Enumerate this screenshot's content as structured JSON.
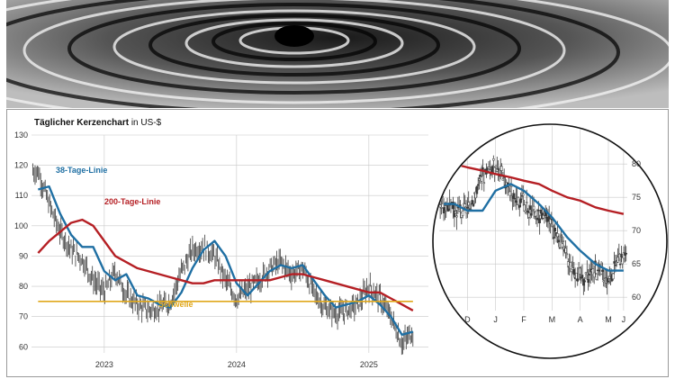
{
  "header": {
    "title_bold": "Täglicher Kerzenchart",
    "title_rest": " in US-$"
  },
  "colors": {
    "ma38": "#1f6fa3",
    "ma200": "#b51f24",
    "threshold": "#e0a81c",
    "candles": "#3a3a3a",
    "grid": "#c8c8c8"
  },
  "chart_data": [
    {
      "type": "line",
      "title": "Täglicher Kerzenchart in US-$",
      "xlabel": "",
      "ylabel": "",
      "x_ticks": [
        "2023",
        "2024",
        "2025"
      ],
      "y_ticks": [
        60,
        70,
        80,
        90,
        100,
        110,
        120,
        130
      ],
      "ylim": [
        58,
        130
      ],
      "grid": true,
      "series": [
        {
          "name": "38-Tage-Linie",
          "x": [
            "2022-07",
            "2022-08",
            "2022-09",
            "2022-10",
            "2022-11",
            "2022-12",
            "2023-01",
            "2023-02",
            "2023-03",
            "2023-04",
            "2023-05",
            "2023-06",
            "2023-07",
            "2023-08",
            "2023-09",
            "2023-10",
            "2023-11",
            "2023-12",
            "2024-01",
            "2024-02",
            "2024-03",
            "2024-04",
            "2024-05",
            "2024-06",
            "2024-07",
            "2024-08",
            "2024-09",
            "2024-10",
            "2024-11",
            "2024-12",
            "2025-01",
            "2025-02",
            "2025-03",
            "2025-04",
            "2025-05"
          ],
          "values": [
            112,
            113,
            104,
            97,
            93,
            93,
            85,
            82,
            84,
            77,
            76,
            74,
            73,
            78,
            86,
            92,
            95,
            90,
            81,
            77,
            81,
            85,
            87,
            86,
            87,
            82,
            77,
            73,
            74,
            75,
            77,
            74,
            70,
            64,
            65
          ]
        },
        {
          "name": "200-Tage-Linie",
          "x": [
            "2022-07",
            "2022-08",
            "2022-09",
            "2022-10",
            "2022-11",
            "2022-12",
            "2023-01",
            "2023-02",
            "2023-03",
            "2023-04",
            "2023-05",
            "2023-06",
            "2023-07",
            "2023-08",
            "2023-09",
            "2023-10",
            "2023-11",
            "2023-12",
            "2024-01",
            "2024-02",
            "2024-03",
            "2024-04",
            "2024-05",
            "2024-06",
            "2024-07",
            "2024-08",
            "2024-09",
            "2024-10",
            "2024-11",
            "2024-12",
            "2025-01",
            "2025-02",
            "2025-03",
            "2025-04",
            "2025-05"
          ],
          "values": [
            91,
            95,
            98,
            101,
            102,
            100,
            95,
            90,
            88,
            86,
            85,
            84,
            83,
            82,
            81,
            81,
            82,
            82,
            82,
            82,
            82,
            82,
            83,
            84,
            84,
            83,
            82,
            81,
            80,
            79,
            78,
            78,
            76,
            74,
            72
          ]
        },
        {
          "name": "Schwelle",
          "x": [
            "2022-07",
            "2025-05"
          ],
          "values": [
            75,
            75
          ]
        }
      ],
      "candles": {
        "x": [
          "2022-07",
          "2022-08",
          "2022-09",
          "2022-10",
          "2022-11",
          "2022-12",
          "2023-01",
          "2023-02",
          "2023-03",
          "2023-04",
          "2023-05",
          "2023-06",
          "2023-07",
          "2023-08",
          "2023-09",
          "2023-10",
          "2023-11",
          "2023-12",
          "2024-01",
          "2024-02",
          "2024-03",
          "2024-04",
          "2024-05",
          "2024-06",
          "2024-07",
          "2024-08",
          "2024-09",
          "2024-10",
          "2024-11",
          "2024-12",
          "2025-01",
          "2025-02",
          "2025-03",
          "2025-04",
          "2025-05"
        ],
        "close": [
          118,
          107,
          98,
          92,
          89,
          82,
          78,
          85,
          77,
          74,
          72,
          73,
          75,
          85,
          92,
          93,
          90,
          82,
          76,
          79,
          82,
          86,
          88,
          84,
          86,
          78,
          73,
          71,
          72,
          74,
          80,
          76,
          70,
          61,
          65
        ]
      }
    },
    {
      "type": "line",
      "title": "",
      "x_ticks": [
        "D",
        "J",
        "F",
        "M",
        "A",
        "M",
        "J"
      ],
      "y_ticks": [
        60,
        65,
        70,
        75,
        80
      ],
      "ylim": [
        58,
        83
      ],
      "series": [
        {
          "name": "38-Tage-Linie",
          "x": [
            "2024-11-20",
            "2024-12-01",
            "2024-12-15",
            "2025-01-01",
            "2025-01-15",
            "2025-02-01",
            "2025-02-15",
            "2025-03-01",
            "2025-03-15",
            "2025-04-01",
            "2025-04-15",
            "2025-05-01",
            "2025-05-15",
            "2025-06-01"
          ],
          "values": [
            74,
            74,
            73,
            73,
            76,
            77,
            76,
            74,
            72,
            69,
            67,
            65,
            64,
            64
          ]
        },
        {
          "name": "200-Tage-Linie",
          "x": [
            "2024-11-20",
            "2024-12-01",
            "2024-12-15",
            "2025-01-01",
            "2025-01-15",
            "2025-02-01",
            "2025-02-15",
            "2025-03-01",
            "2025-03-15",
            "2025-04-01",
            "2025-04-15",
            "2025-05-01",
            "2025-05-15",
            "2025-06-01"
          ],
          "values": [
            80.5,
            80,
            79.5,
            79,
            78.5,
            78,
            77.5,
            77,
            76,
            75,
            74.5,
            73.5,
            73,
            72.5
          ]
        }
      ],
      "candles": {
        "x": [
          "2024-11-20",
          "2024-12-01",
          "2024-12-15",
          "2025-01-01",
          "2025-01-15",
          "2025-02-01",
          "2025-02-15",
          "2025-03-01",
          "2025-03-15",
          "2025-04-01",
          "2025-04-15",
          "2025-05-01",
          "2025-05-15",
          "2025-06-01"
        ],
        "close": [
          74,
          73,
          73,
          78,
          80,
          76,
          74,
          72,
          71,
          66,
          63,
          64,
          63,
          66
        ]
      }
    }
  ]
}
